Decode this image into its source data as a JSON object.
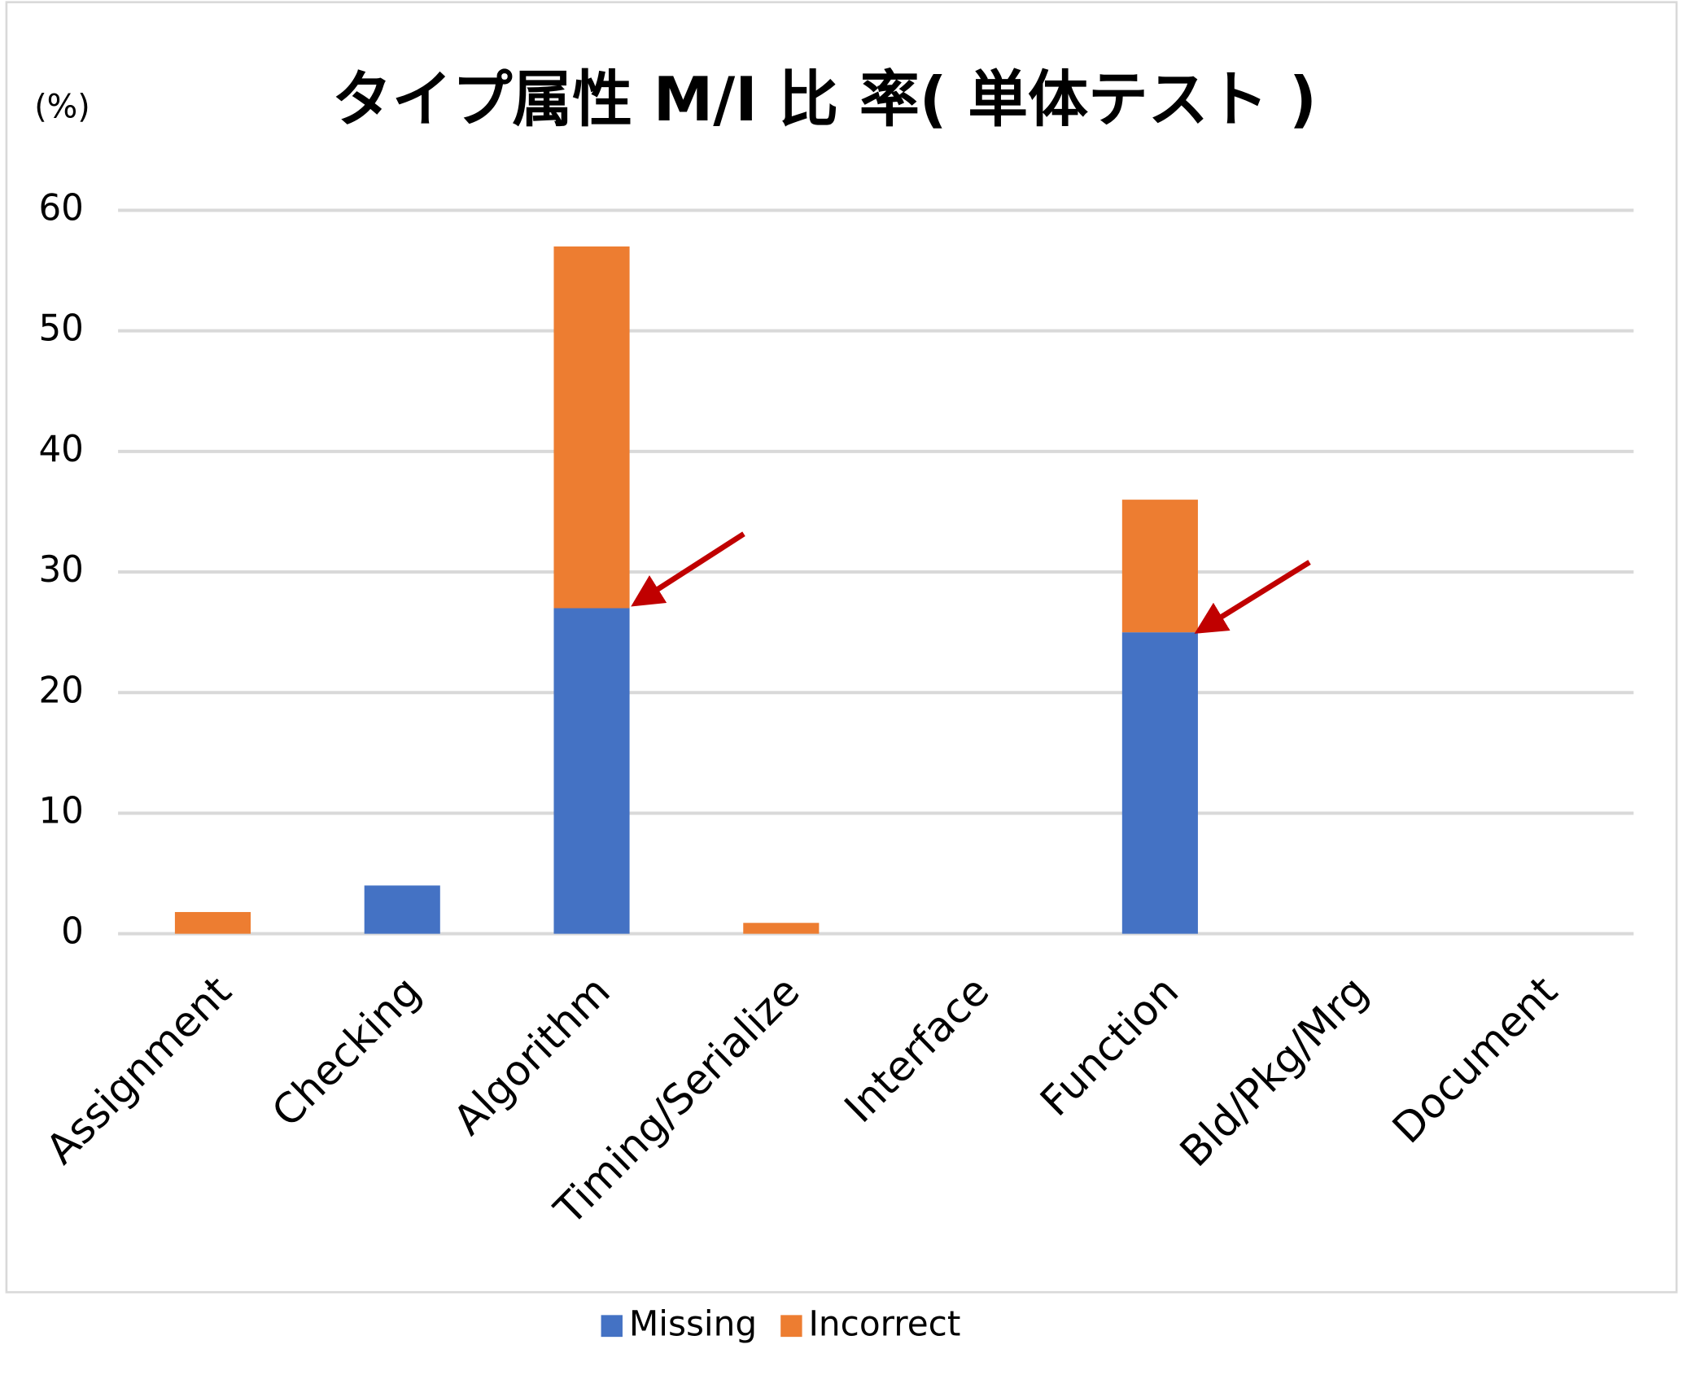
{
  "chart_data": {
    "type": "stacked_bar",
    "title": "タイプ属性 M/I 比 率( 単体テスト )",
    "y_label": "(%)",
    "categories": [
      "Assignment",
      "Checking",
      "Algorithm",
      "Timing/Serialize",
      "Interface",
      "Function",
      "Bld/Pkg/Mrg",
      "Document"
    ],
    "series": [
      {
        "name": "Missing",
        "color": "#4472c4",
        "values": [
          0,
          4,
          27,
          0,
          0,
          25,
          0,
          0
        ]
      },
      {
        "name": "Incorrect",
        "color": "#ed7d31",
        "values": [
          1.8,
          0,
          30,
          0.9,
          0,
          11,
          0,
          0
        ]
      }
    ],
    "ylim": [
      0,
      60
    ],
    "yticks": [
      0,
      10,
      20,
      30,
      40,
      50,
      60
    ],
    "grid": true,
    "legend": "bottom"
  }
}
